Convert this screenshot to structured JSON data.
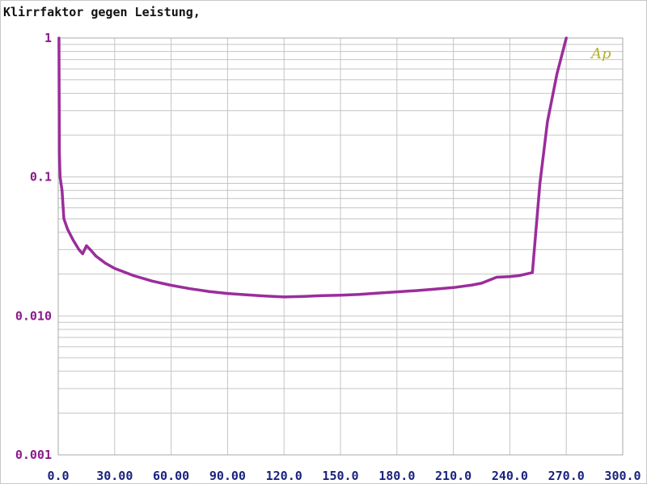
{
  "chart_data": {
    "type": "line",
    "title": "Klirrfaktor gegen Leistung,",
    "xlabel": "",
    "ylabel": "",
    "xlim": [
      0,
      300
    ],
    "ylim": [
      0.001,
      1
    ],
    "yscale": "log",
    "grid": true,
    "x_tick_labels": [
      "0.0",
      "30.00",
      "60.00",
      "90.00",
      "120.0",
      "150.0",
      "180.0",
      "210.0",
      "240.0",
      "270.0",
      "300.0"
    ],
    "y_tick_labels": [
      {
        "value": 1,
        "label": "1"
      },
      {
        "value": 0.1,
        "label": "0.1"
      },
      {
        "value": 0.01,
        "label": "0.010"
      },
      {
        "value": 0.001,
        "label": "0.001"
      }
    ],
    "logo_text": "Ap",
    "series_color": "#9b2d9b",
    "series": [
      {
        "x": [
          0.4,
          0.6,
          1.0,
          2.0,
          3.0,
          5.0,
          8.0,
          11.0,
          13.0,
          15.0,
          17.0,
          20.0,
          25.0,
          30.0,
          40.0,
          50.0,
          60.0,
          70.0,
          80.0,
          90.0,
          100.0,
          110.0,
          120.0,
          130.0,
          140.0,
          150.0,
          160.0,
          170.0,
          180.0,
          190.0,
          200.0,
          210.0,
          220.0,
          225.0,
          233.0,
          240.0,
          245.0,
          252.0,
          256.0,
          260.0,
          265.0,
          270.0
        ],
        "y": [
          1.0,
          0.15,
          0.1,
          0.08,
          0.05,
          0.042,
          0.035,
          0.03,
          0.028,
          0.032,
          0.03,
          0.027,
          0.024,
          0.022,
          0.0195,
          0.0178,
          0.0166,
          0.0157,
          0.015,
          0.0145,
          0.0142,
          0.0139,
          0.0137,
          0.0138,
          0.014,
          0.0141,
          0.0143,
          0.0146,
          0.0149,
          0.0152,
          0.0156,
          0.016,
          0.0167,
          0.0172,
          0.019,
          0.0192,
          0.0195,
          0.0205,
          0.09,
          0.25,
          0.55,
          1.0
        ]
      }
    ]
  }
}
